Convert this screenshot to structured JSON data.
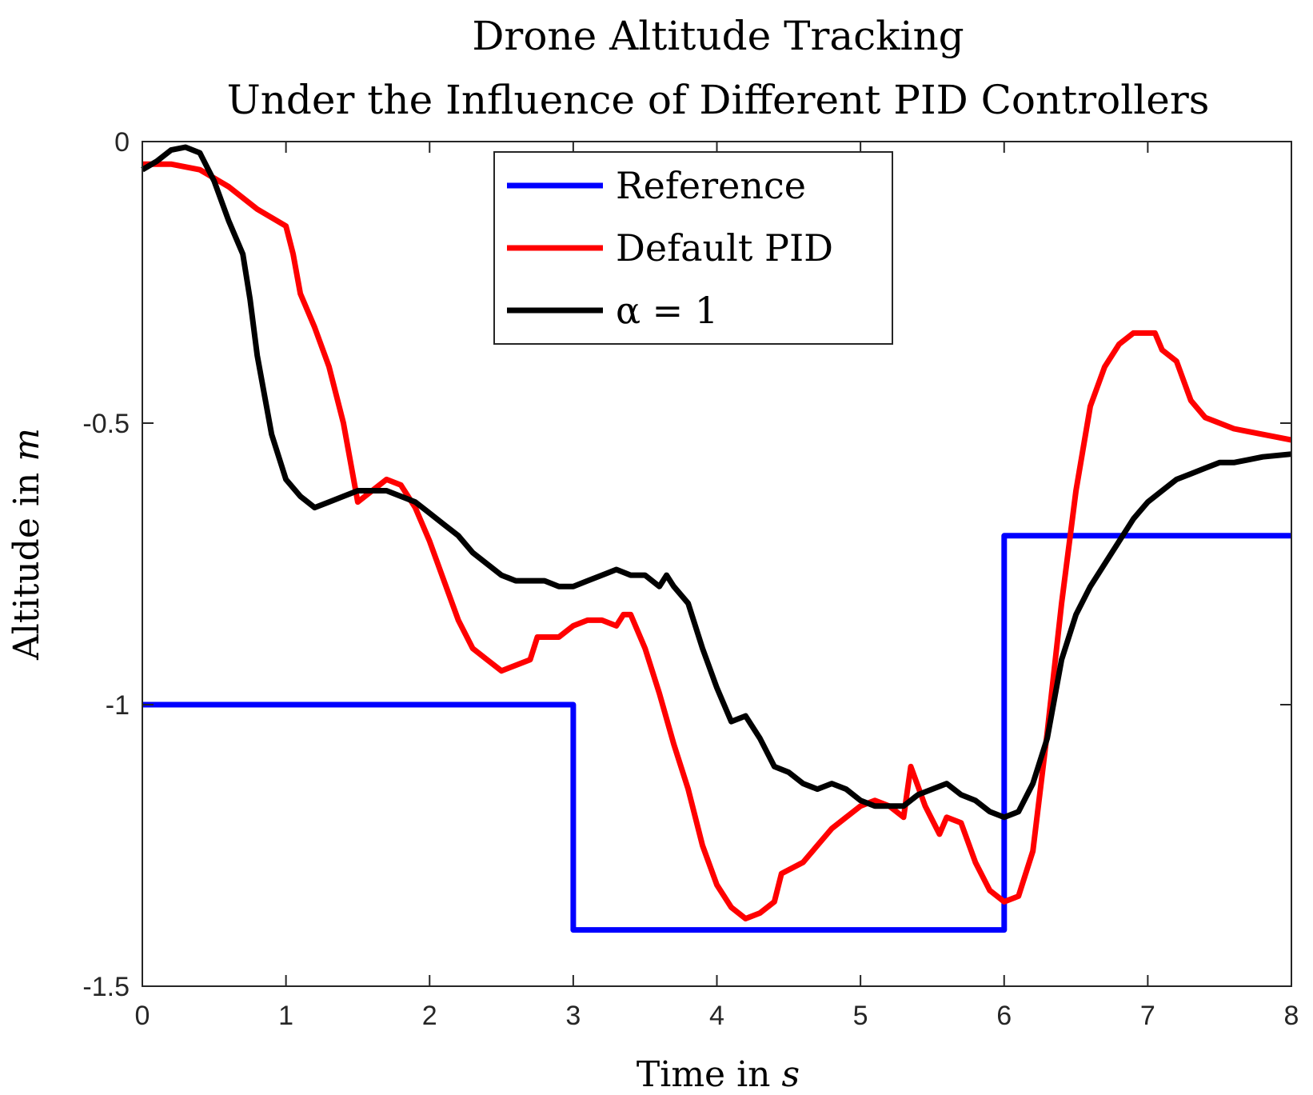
{
  "chart_data": {
    "type": "line",
    "title": [
      "Drone Altitude Tracking",
      "Under the Influence of Different PID Controllers"
    ],
    "xlabel": {
      "text": "Time in ",
      "var": "s"
    },
    "ylabel": {
      "text": "Altitude in ",
      "var": "m"
    },
    "xlim": [
      0,
      8
    ],
    "ylim": [
      -1.5,
      0
    ],
    "xticks": [
      0,
      1,
      2,
      3,
      4,
      5,
      6,
      7,
      8
    ],
    "xtick_labels": [
      "0",
      "1",
      "2",
      "3",
      "4",
      "5",
      "6",
      "7",
      "8"
    ],
    "yticks": [
      0,
      -0.5,
      -1,
      -1.5
    ],
    "ytick_labels": [
      "0",
      "-0.5",
      "-1",
      "-1.5"
    ],
    "grid": false,
    "legend_position": "top-center",
    "series": [
      {
        "name": "Reference",
        "legend_text": "Reference",
        "color": "#0000ff",
        "points": [
          [
            0,
            -1.0
          ],
          [
            3.0,
            -1.0
          ],
          [
            3.0,
            -1.4
          ],
          [
            6.0,
            -1.4
          ],
          [
            6.0,
            -0.7
          ],
          [
            8.0,
            -0.7
          ]
        ]
      },
      {
        "name": "Default PID",
        "legend_text": "Default PID",
        "color": "#ff0000",
        "points": [
          [
            0,
            -0.04
          ],
          [
            0.2,
            -0.04
          ],
          [
            0.4,
            -0.05
          ],
          [
            0.6,
            -0.08
          ],
          [
            0.8,
            -0.12
          ],
          [
            1.0,
            -0.15
          ],
          [
            1.05,
            -0.2
          ],
          [
            1.1,
            -0.27
          ],
          [
            1.2,
            -0.33
          ],
          [
            1.3,
            -0.4
          ],
          [
            1.4,
            -0.5
          ],
          [
            1.5,
            -0.64
          ],
          [
            1.6,
            -0.62
          ],
          [
            1.7,
            -0.6
          ],
          [
            1.8,
            -0.61
          ],
          [
            1.9,
            -0.65
          ],
          [
            2.0,
            -0.71
          ],
          [
            2.1,
            -0.78
          ],
          [
            2.2,
            -0.85
          ],
          [
            2.3,
            -0.9
          ],
          [
            2.4,
            -0.92
          ],
          [
            2.5,
            -0.94
          ],
          [
            2.6,
            -0.93
          ],
          [
            2.7,
            -0.92
          ],
          [
            2.75,
            -0.88
          ],
          [
            2.9,
            -0.88
          ],
          [
            3.0,
            -0.86
          ],
          [
            3.1,
            -0.85
          ],
          [
            3.2,
            -0.85
          ],
          [
            3.3,
            -0.86
          ],
          [
            3.35,
            -0.84
          ],
          [
            3.4,
            -0.84
          ],
          [
            3.5,
            -0.9
          ],
          [
            3.6,
            -0.98
          ],
          [
            3.7,
            -1.07
          ],
          [
            3.8,
            -1.15
          ],
          [
            3.9,
            -1.25
          ],
          [
            4.0,
            -1.32
          ],
          [
            4.1,
            -1.36
          ],
          [
            4.2,
            -1.38
          ],
          [
            4.3,
            -1.37
          ],
          [
            4.4,
            -1.35
          ],
          [
            4.45,
            -1.3
          ],
          [
            4.6,
            -1.28
          ],
          [
            4.7,
            -1.25
          ],
          [
            4.8,
            -1.22
          ],
          [
            4.9,
            -1.2
          ],
          [
            5.0,
            -1.18
          ],
          [
            5.1,
            -1.17
          ],
          [
            5.2,
            -1.18
          ],
          [
            5.3,
            -1.2
          ],
          [
            5.35,
            -1.11
          ],
          [
            5.45,
            -1.18
          ],
          [
            5.55,
            -1.23
          ],
          [
            5.6,
            -1.2
          ],
          [
            5.7,
            -1.21
          ],
          [
            5.8,
            -1.28
          ],
          [
            5.9,
            -1.33
          ],
          [
            6.0,
            -1.35
          ],
          [
            6.1,
            -1.34
          ],
          [
            6.2,
            -1.26
          ],
          [
            6.3,
            -1.05
          ],
          [
            6.4,
            -0.82
          ],
          [
            6.5,
            -0.62
          ],
          [
            6.6,
            -0.47
          ],
          [
            6.7,
            -0.4
          ],
          [
            6.8,
            -0.36
          ],
          [
            6.9,
            -0.34
          ],
          [
            7.05,
            -0.34
          ],
          [
            7.1,
            -0.37
          ],
          [
            7.2,
            -0.39
          ],
          [
            7.3,
            -0.46
          ],
          [
            7.4,
            -0.49
          ],
          [
            7.5,
            -0.5
          ],
          [
            7.6,
            -0.51
          ],
          [
            7.7,
            -0.515
          ],
          [
            7.8,
            -0.52
          ],
          [
            8.0,
            -0.53
          ]
        ]
      },
      {
        "name": "alpha = 1",
        "legend_text": "α = 1",
        "color": "#000000",
        "points": [
          [
            0,
            -0.05
          ],
          [
            0.1,
            -0.035
          ],
          [
            0.2,
            -0.015
          ],
          [
            0.3,
            -0.01
          ],
          [
            0.4,
            -0.02
          ],
          [
            0.5,
            -0.07
          ],
          [
            0.6,
            -0.14
          ],
          [
            0.7,
            -0.2
          ],
          [
            0.75,
            -0.28
          ],
          [
            0.8,
            -0.38
          ],
          [
            0.9,
            -0.52
          ],
          [
            1.0,
            -0.6
          ],
          [
            1.1,
            -0.63
          ],
          [
            1.2,
            -0.65
          ],
          [
            1.3,
            -0.64
          ],
          [
            1.4,
            -0.63
          ],
          [
            1.5,
            -0.62
          ],
          [
            1.6,
            -0.62
          ],
          [
            1.7,
            -0.62
          ],
          [
            1.8,
            -0.63
          ],
          [
            1.9,
            -0.64
          ],
          [
            2.0,
            -0.66
          ],
          [
            2.1,
            -0.68
          ],
          [
            2.2,
            -0.7
          ],
          [
            2.3,
            -0.73
          ],
          [
            2.4,
            -0.75
          ],
          [
            2.5,
            -0.77
          ],
          [
            2.6,
            -0.78
          ],
          [
            2.7,
            -0.78
          ],
          [
            2.8,
            -0.78
          ],
          [
            2.9,
            -0.79
          ],
          [
            3.0,
            -0.79
          ],
          [
            3.1,
            -0.78
          ],
          [
            3.2,
            -0.77
          ],
          [
            3.3,
            -0.76
          ],
          [
            3.4,
            -0.77
          ],
          [
            3.5,
            -0.77
          ],
          [
            3.6,
            -0.79
          ],
          [
            3.65,
            -0.77
          ],
          [
            3.7,
            -0.79
          ],
          [
            3.8,
            -0.82
          ],
          [
            3.9,
            -0.9
          ],
          [
            4.0,
            -0.97
          ],
          [
            4.1,
            -1.03
          ],
          [
            4.2,
            -1.02
          ],
          [
            4.3,
            -1.06
          ],
          [
            4.4,
            -1.11
          ],
          [
            4.5,
            -1.12
          ],
          [
            4.6,
            -1.14
          ],
          [
            4.7,
            -1.15
          ],
          [
            4.8,
            -1.14
          ],
          [
            4.9,
            -1.15
          ],
          [
            5.0,
            -1.17
          ],
          [
            5.1,
            -1.18
          ],
          [
            5.2,
            -1.18
          ],
          [
            5.3,
            -1.18
          ],
          [
            5.4,
            -1.16
          ],
          [
            5.5,
            -1.15
          ],
          [
            5.6,
            -1.14
          ],
          [
            5.7,
            -1.16
          ],
          [
            5.8,
            -1.17
          ],
          [
            5.9,
            -1.19
          ],
          [
            6.0,
            -1.2
          ],
          [
            6.1,
            -1.19
          ],
          [
            6.2,
            -1.14
          ],
          [
            6.3,
            -1.06
          ],
          [
            6.4,
            -0.92
          ],
          [
            6.5,
            -0.84
          ],
          [
            6.6,
            -0.79
          ],
          [
            6.7,
            -0.75
          ],
          [
            6.8,
            -0.71
          ],
          [
            6.9,
            -0.67
          ],
          [
            7.0,
            -0.64
          ],
          [
            7.1,
            -0.62
          ],
          [
            7.2,
            -0.6
          ],
          [
            7.3,
            -0.59
          ],
          [
            7.4,
            -0.58
          ],
          [
            7.5,
            -0.57
          ],
          [
            7.6,
            -0.57
          ],
          [
            7.7,
            -0.565
          ],
          [
            7.8,
            -0.56
          ],
          [
            8.0,
            -0.555
          ]
        ]
      }
    ]
  }
}
